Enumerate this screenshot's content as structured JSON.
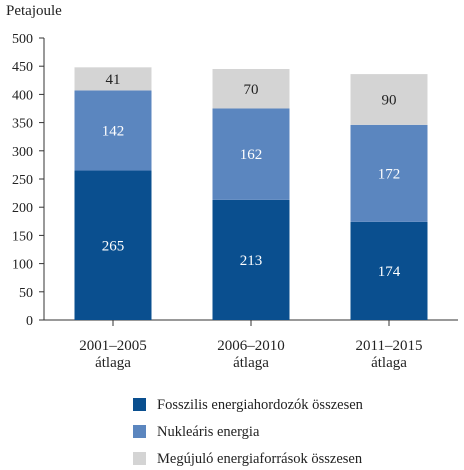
{
  "chart_data": {
    "type": "bar",
    "stacked": true,
    "ylabel": "Petajoule",
    "ylim": [
      0,
      500
    ],
    "yticks": [
      0,
      50,
      100,
      150,
      200,
      250,
      300,
      350,
      400,
      450,
      500
    ],
    "grid": false,
    "categories": [
      [
        "2001–2005",
        "átlaga"
      ],
      [
        "2006–2010",
        "átlaga"
      ],
      [
        "2011–2015",
        "átlaga"
      ]
    ],
    "series": [
      {
        "name": "Fosszilis energiahordozók összesen",
        "values": [
          265,
          213,
          174
        ],
        "color": "#0a4f8f",
        "label_color": "#ffffff"
      },
      {
        "name": "Nukleáris energia",
        "values": [
          142,
          162,
          172
        ],
        "color": "#5b86bf",
        "label_color": "#ffffff"
      },
      {
        "name": "Megújuló energiaforrások összesen",
        "values": [
          41,
          70,
          90
        ],
        "color": "#d4d4d4",
        "label_color": "#222222"
      }
    ],
    "legend_position": "bottom"
  }
}
